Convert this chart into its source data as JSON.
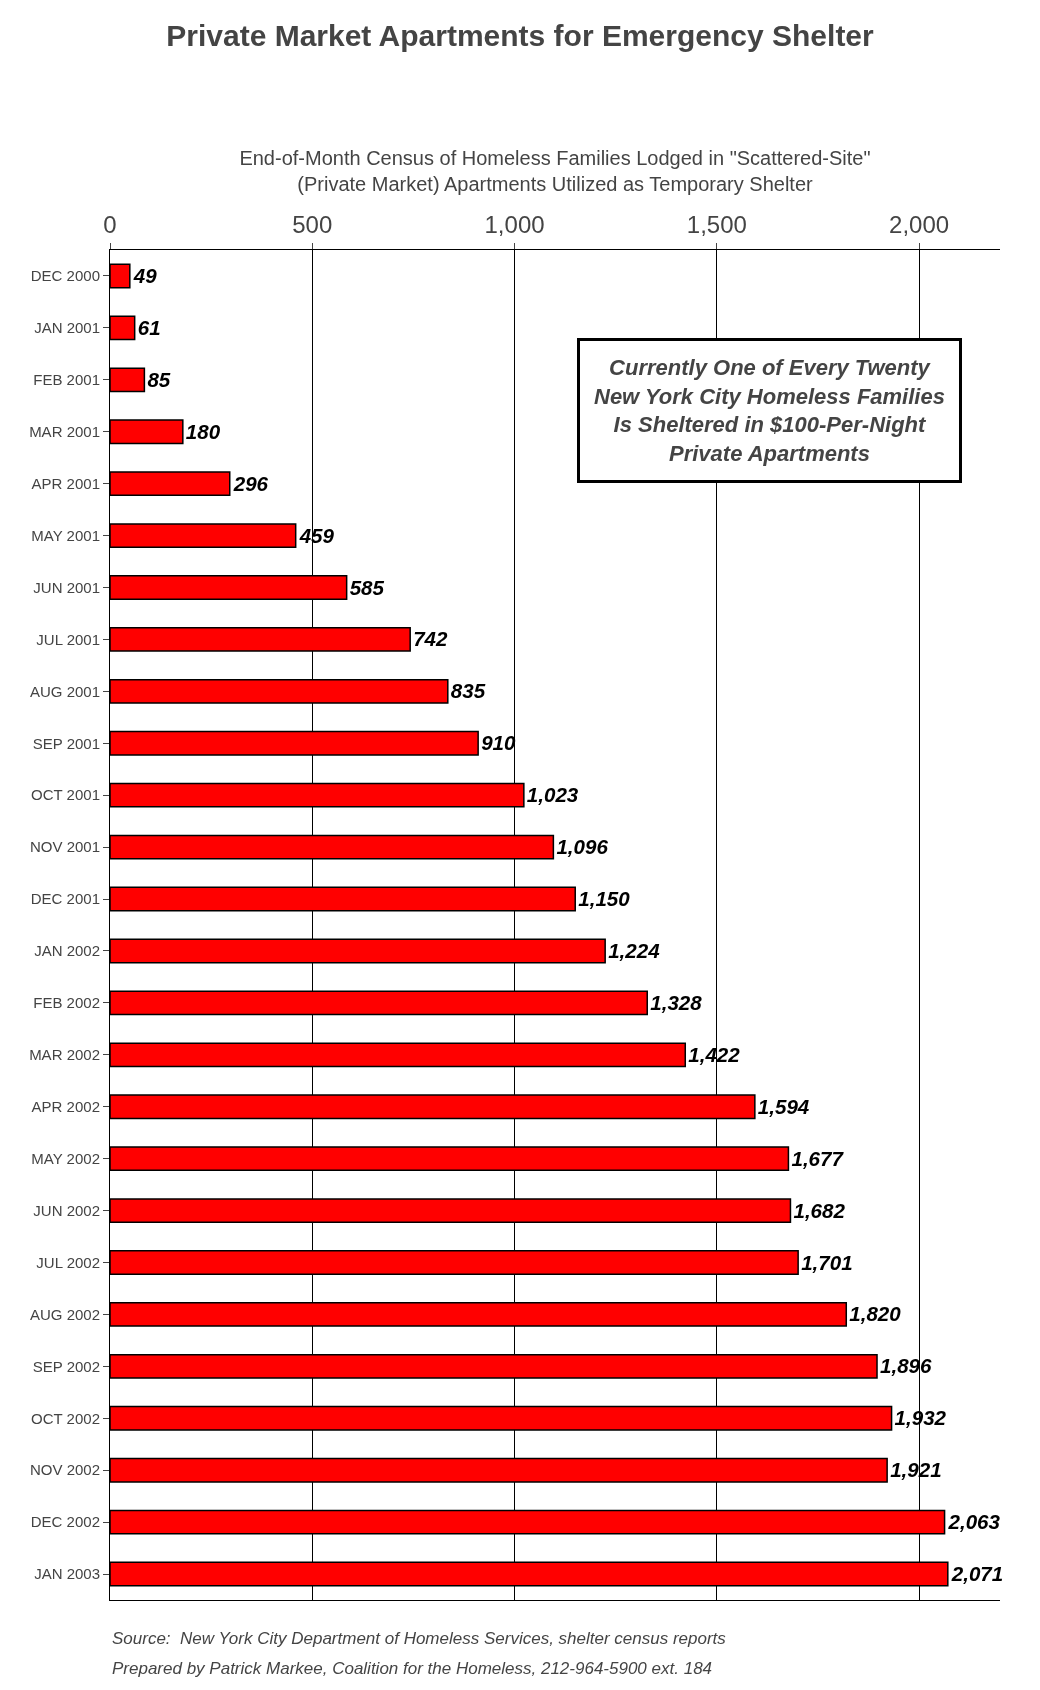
{
  "chart_data": {
    "type": "bar",
    "orientation": "horizontal",
    "title": "Private Market Apartments for Emergency Shelter",
    "xlabel": "End-of-Month Census of Homeless Families Lodged in \"Scattered-Site\"\n(Private Market) Apartments Utilized as Temporary Shelter",
    "categories": [
      "DEC 2000",
      "JAN 2001",
      "FEB 2001",
      "MAR 2001",
      "APR 2001",
      "MAY 2001",
      "JUN 2001",
      "JUL 2001",
      "AUG 2001",
      "SEP 2001",
      "OCT 2001",
      "NOV 2001",
      "DEC 2001",
      "JAN 2002",
      "FEB 2002",
      "MAR 2002",
      "APR 2002",
      "MAY 2002",
      "JUN 2002",
      "JUL 2002",
      "AUG 2002",
      "SEP 2002",
      "OCT 2002",
      "NOV 2002",
      "DEC 2002",
      "JAN 2003"
    ],
    "values": [
      49,
      61,
      85,
      180,
      296,
      459,
      585,
      742,
      835,
      910,
      1023,
      1096,
      1150,
      1224,
      1328,
      1422,
      1594,
      1677,
      1682,
      1701,
      1820,
      1896,
      1932,
      1921,
      2063,
      2071
    ],
    "value_labels": [
      "49",
      "61",
      "85",
      "180",
      "296",
      "459",
      "585",
      "742",
      "835",
      "910",
      "1,023",
      "1,096",
      "1,150",
      "1,224",
      "1,328",
      "1,422",
      "1,594",
      "1,677",
      "1,682",
      "1,701",
      "1,820",
      "1,896",
      "1,932",
      "1,921",
      "2,063",
      "2,071"
    ],
    "color": "#ff0000",
    "xlim": [
      0,
      2200
    ],
    "xticks": [
      0,
      {
        "value": 500,
        "label": "500"
      },
      {
        "value": 1000,
        "label": "1,000"
      },
      {
        "value": 1500,
        "label": "1,500"
      },
      {
        "value": 2000,
        "label": "2,000"
      }
    ],
    "grid": "x",
    "annotations": [
      {
        "text": "Currently One of Every Twenty\nNew York City Homeless Families\nIs Sheltered in $100-Per-Night\nPrivate Apartments"
      },
      {
        "text": "Source:  New York City Department of Homeless Services, shelter census reports"
      },
      {
        "text": "Prepared by Patrick Markee, Coalition for the Homeless, 212-964-5900 ext. 184"
      }
    ]
  }
}
